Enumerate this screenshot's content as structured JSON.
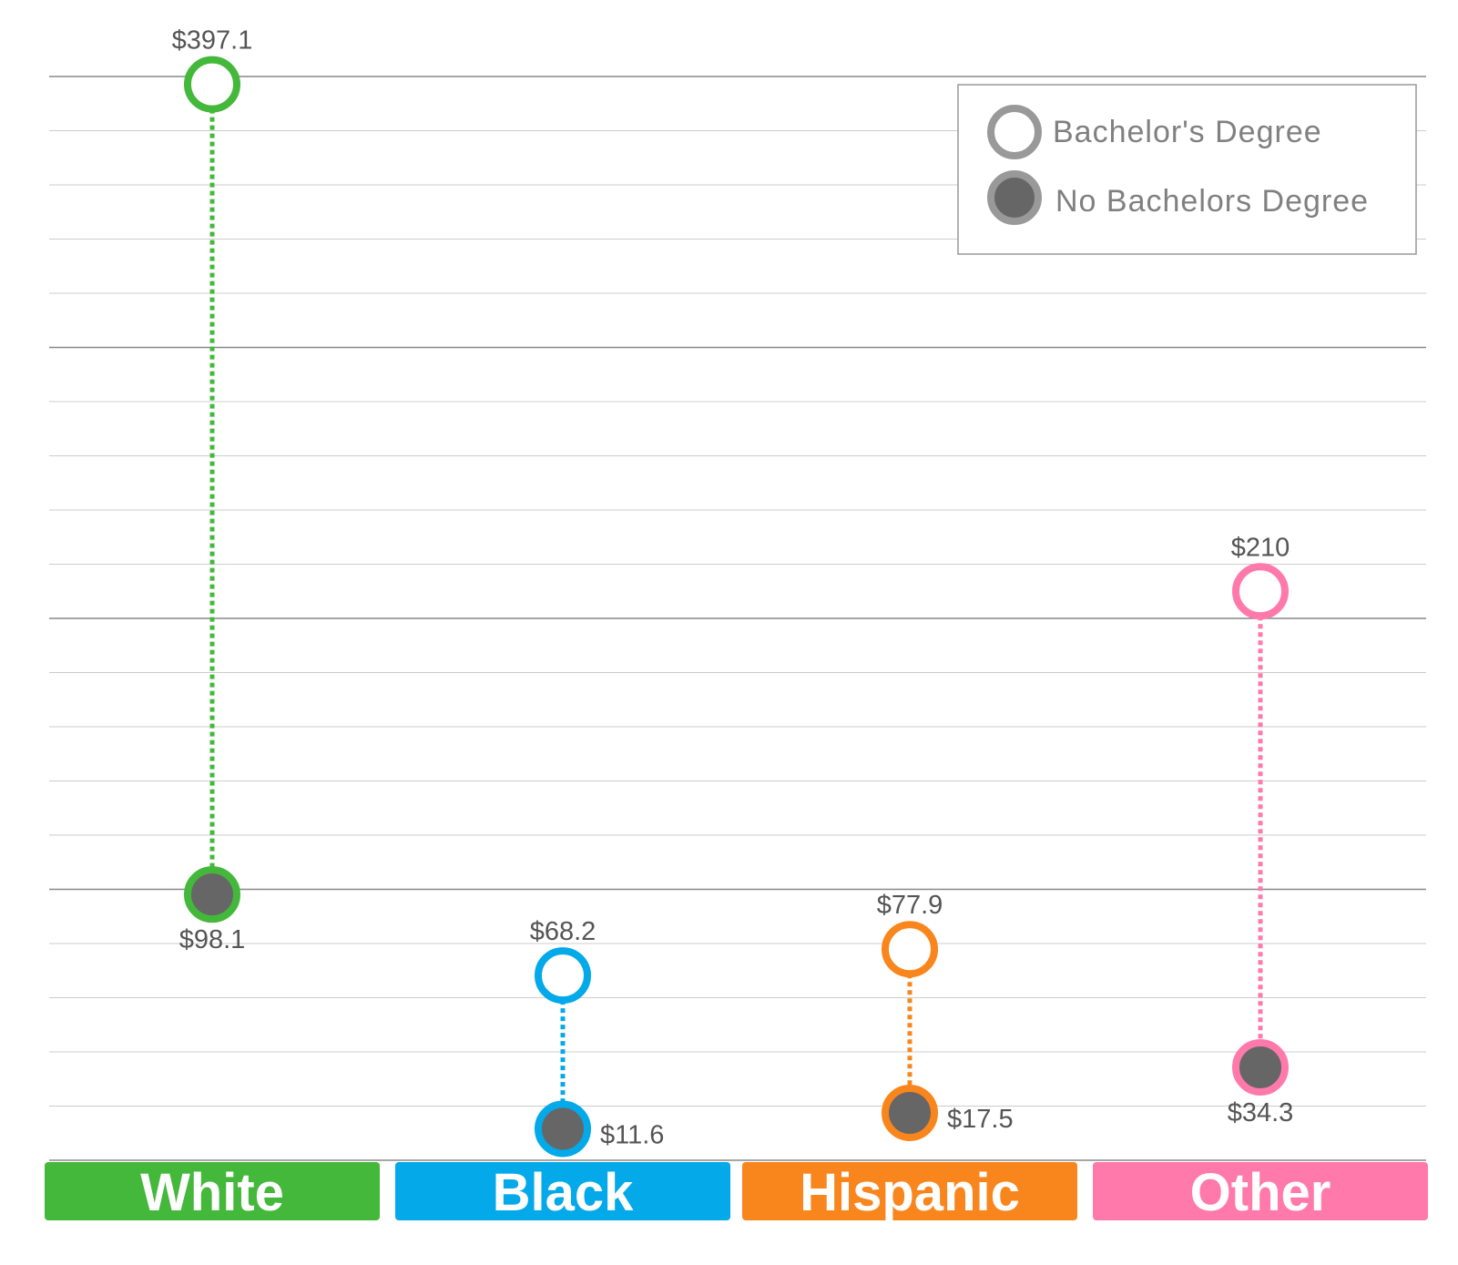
{
  "chart_data": {
    "type": "dot-range",
    "categories": [
      "White",
      "Black",
      "Hispanic",
      "Other"
    ],
    "category_colors": [
      "#44b83a",
      "#03a9e8",
      "#f9861d",
      "#ff79aa"
    ],
    "series": [
      {
        "name": "Bachelor's Degree",
        "values": [
          397.1,
          68.2,
          77.9,
          210
        ],
        "labels": [
          "$397.1",
          "$68.2",
          "$77.9",
          "$210"
        ],
        "marker": "hollow"
      },
      {
        "name": "No Bachelors Degree",
        "values": [
          98.1,
          11.6,
          17.5,
          34.3
        ],
        "labels": [
          "$98.1",
          "$11.6",
          "$17.5",
          "$34.3"
        ],
        "marker": "filled"
      }
    ],
    "ylim": [
      0,
      400
    ],
    "grid": true,
    "legend_position": "top-right",
    "colors": {
      "filled_marker": "#666666",
      "legend_ring": "#999999",
      "gridline": "#cccccc",
      "major_gridline": "#888888"
    }
  }
}
